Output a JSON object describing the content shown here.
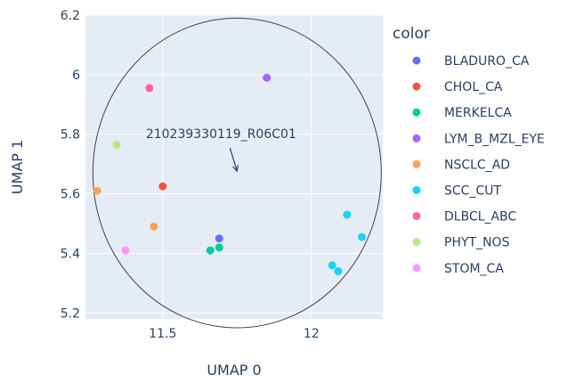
{
  "chart_data": {
    "type": "scatter",
    "xlabel": "UMAP 0",
    "ylabel": "UMAP 1",
    "xlim": [
      11.24,
      12.24
    ],
    "ylim": [
      5.18,
      6.2
    ],
    "xticks": [
      11.5,
      12
    ],
    "yticks": [
      5.2,
      5.4,
      5.6,
      5.8,
      6,
      6.2
    ],
    "xtick_labels": [
      "11.5",
      "12"
    ],
    "ytick_labels": [
      "5.2",
      "5.4",
      "5.6",
      "5.8",
      "6",
      "6.2"
    ],
    "grid": true,
    "legend_title": "color",
    "legend_position": "right",
    "series": [
      {
        "name": "BLADURO_CA",
        "color": "#636efa",
        "points": [
          {
            "x": 11.69,
            "y": 5.45
          }
        ]
      },
      {
        "name": "CHOL_CA",
        "color": "#ef553b",
        "points": [
          {
            "x": 11.5,
            "y": 5.625
          }
        ]
      },
      {
        "name": "MERKELCA",
        "color": "#00cc96",
        "points": [
          {
            "x": 11.66,
            "y": 5.41
          },
          {
            "x": 11.69,
            "y": 5.42
          }
        ]
      },
      {
        "name": "LYM_B_MZL_EYE",
        "color": "#ab63fa",
        "points": [
          {
            "x": 11.85,
            "y": 5.99
          }
        ]
      },
      {
        "name": "NSCLC_AD",
        "color": "#ffa15a",
        "points": [
          {
            "x": 11.28,
            "y": 5.61
          },
          {
            "x": 11.47,
            "y": 5.49
          }
        ]
      },
      {
        "name": "SCC_CUT",
        "color": "#19d3f3",
        "points": [
          {
            "x": 12.07,
            "y": 5.36
          },
          {
            "x": 12.09,
            "y": 5.34
          },
          {
            "x": 12.12,
            "y": 5.53
          },
          {
            "x": 12.17,
            "y": 5.455
          }
        ]
      },
      {
        "name": "DLBCL_ABC",
        "color": "#ff6692",
        "points": [
          {
            "x": 11.455,
            "y": 5.955
          }
        ]
      },
      {
        "name": "PHYT_NOS",
        "color": "#b6e880",
        "points": [
          {
            "x": 11.345,
            "y": 5.765
          }
        ]
      },
      {
        "name": "STOM_CA",
        "color": "#ff97ff",
        "points": [
          {
            "x": 11.375,
            "y": 5.41
          }
        ]
      }
    ],
    "circle": {
      "cx": 11.75,
      "cy": 5.67,
      "rx": 0.485,
      "ry": 0.52
    },
    "annotation": {
      "text": "210239330119_R06C01",
      "x": 11.75,
      "y": 5.67
    }
  }
}
